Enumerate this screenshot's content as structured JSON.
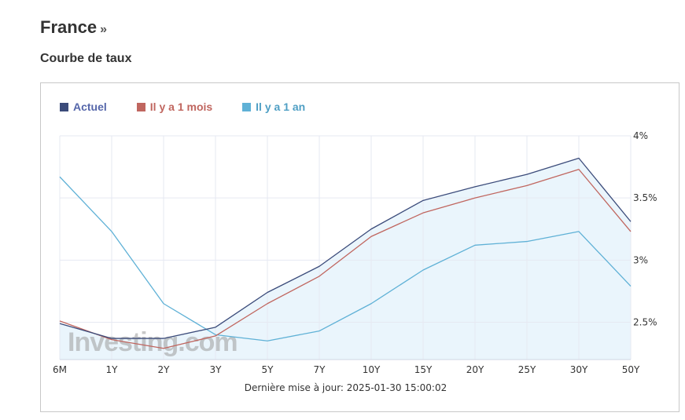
{
  "header": {
    "title": "France",
    "title_arrow": "»",
    "subtitle": "Courbe de taux"
  },
  "watermark": "Investing.com",
  "footer": "Dernière mise à jour: 2025-01-30 15:00:02",
  "colors": {
    "actuel": "#3b4b7a",
    "mois": "#c0665f",
    "an": "#5fb1d6",
    "fill": "#eaf5fc",
    "grid": "#e6e9f2"
  },
  "chart_data": {
    "type": "line",
    "categories": [
      "6M",
      "1Y",
      "2Y",
      "3Y",
      "5Y",
      "7Y",
      "10Y",
      "15Y",
      "20Y",
      "25Y",
      "30Y",
      "50Y"
    ],
    "y_ticks": [
      "2.5%",
      "3%",
      "3.5%",
      "4%"
    ],
    "ylim": [
      2.2,
      4.0
    ],
    "grid": true,
    "legend_position": "top-left",
    "series": [
      {
        "name": "Actuel",
        "key": "actuel",
        "values": [
          2.49,
          2.37,
          2.37,
          2.46,
          2.74,
          2.95,
          3.25,
          3.48,
          3.59,
          3.69,
          3.82,
          3.31
        ]
      },
      {
        "name": "Il y a 1 mois",
        "key": "mois",
        "values": [
          2.51,
          2.36,
          2.29,
          2.39,
          2.65,
          2.87,
          3.19,
          3.38,
          3.5,
          3.6,
          3.73,
          3.23
        ]
      },
      {
        "name": "Il y a 1 an",
        "key": "an",
        "values": [
          3.67,
          3.23,
          2.65,
          2.4,
          2.35,
          2.43,
          2.65,
          2.92,
          3.12,
          3.15,
          3.23,
          2.79
        ]
      }
    ]
  }
}
